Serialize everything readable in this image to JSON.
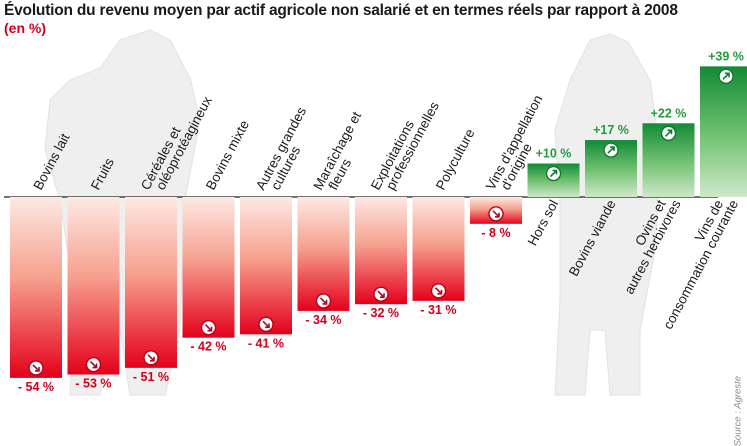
{
  "chart_data": {
    "type": "bar",
    "title": "Évolution du revenu moyen par actif agricole non salarié et en termes réels par rapport à 2008",
    "subtitle": "(en %)",
    "source": "Source : Agreste",
    "categories": [
      "Bovins lait",
      "Fruits",
      "Céréales et oléoprotéagineux",
      "Bovins mixte",
      "Autres grandes cultures",
      "Maraîchage et fleurs",
      "Exploitations professionnelles",
      "Polyculture",
      "Vins d'appellation d'origine",
      "Hors sol",
      "Bovins viande",
      "Ovins et autres herbivores",
      "Vins de consommation courante"
    ],
    "category_lines": [
      [
        "Bovins lait"
      ],
      [
        "Fruits"
      ],
      [
        "Céréales et",
        "oléoprotéagineux"
      ],
      [
        "Bovins mixte"
      ],
      [
        "Autres grandes",
        "cultures"
      ],
      [
        "Maraîchage et",
        "fleurs"
      ],
      [
        "Exploitations",
        "professionnelles"
      ],
      [
        "Polyculture"
      ],
      [
        "Vins d'appellation",
        "d'origine"
      ],
      [
        "Hors sol"
      ],
      [
        "Bovins viande"
      ],
      [
        "Ovins et",
        "autres herbivores"
      ],
      [
        "Vins de",
        "consommation courante"
      ]
    ],
    "values": [
      -54,
      -53,
      -51,
      -42,
      -41,
      -34,
      -32,
      -31,
      -8,
      10,
      17,
      22,
      39
    ],
    "value_labels": [
      "- 54 %",
      "- 53 %",
      "- 51 %",
      "- 42 %",
      "- 41 %",
      "- 34 %",
      "- 32 %",
      "- 31 %",
      "- 8 %",
      "+10 %",
      "+17 %",
      "+22 %",
      "+39 %"
    ],
    "unit": "%",
    "ylim": [
      -56,
      42
    ],
    "colors": {
      "negative_light": "#fce6e1",
      "negative_dark": "#e3001b",
      "positive_light": "#c8e6c0",
      "positive_dark": "#138a36",
      "negative_text": "#d0021b",
      "positive_text": "#1f9e3a"
    }
  }
}
